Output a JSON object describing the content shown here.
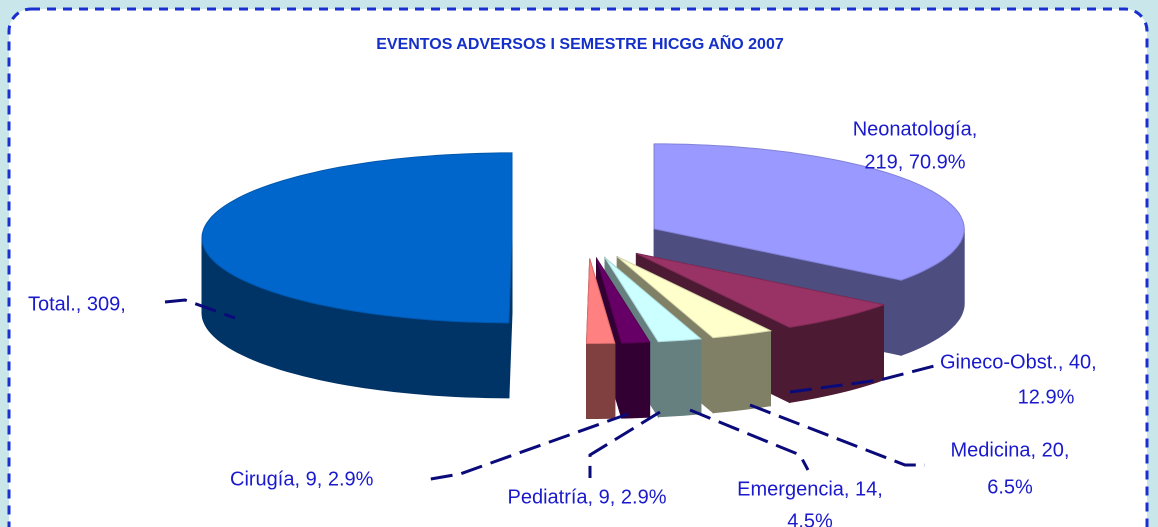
{
  "chart_data": {
    "type": "pie3d",
    "title": "EVENTOS ADVERSOS I SEMESTRE HICGG AÑO 2007",
    "values": [
      219,
      40,
      20,
      14,
      9,
      9,
      309
    ],
    "value_labels": [
      [
        "Neonatología,",
        "219, 70.9%"
      ],
      [
        "Gineco-Obst., 40,",
        "12.9%"
      ],
      [
        "Medicina, 20,",
        "6.5%"
      ],
      [
        "Emergencia, 14,",
        "4.5%"
      ],
      [
        "Pediatría, 9, 2.9%"
      ],
      [
        "Cirugía, 9, 2.9%"
      ],
      [
        "Total., 309,"
      ]
    ],
    "colors": [
      "#9999ff",
      "#993366",
      "#ffffcc",
      "#ccffff",
      "#660066",
      "#ff8080",
      "#0066cc"
    ]
  }
}
